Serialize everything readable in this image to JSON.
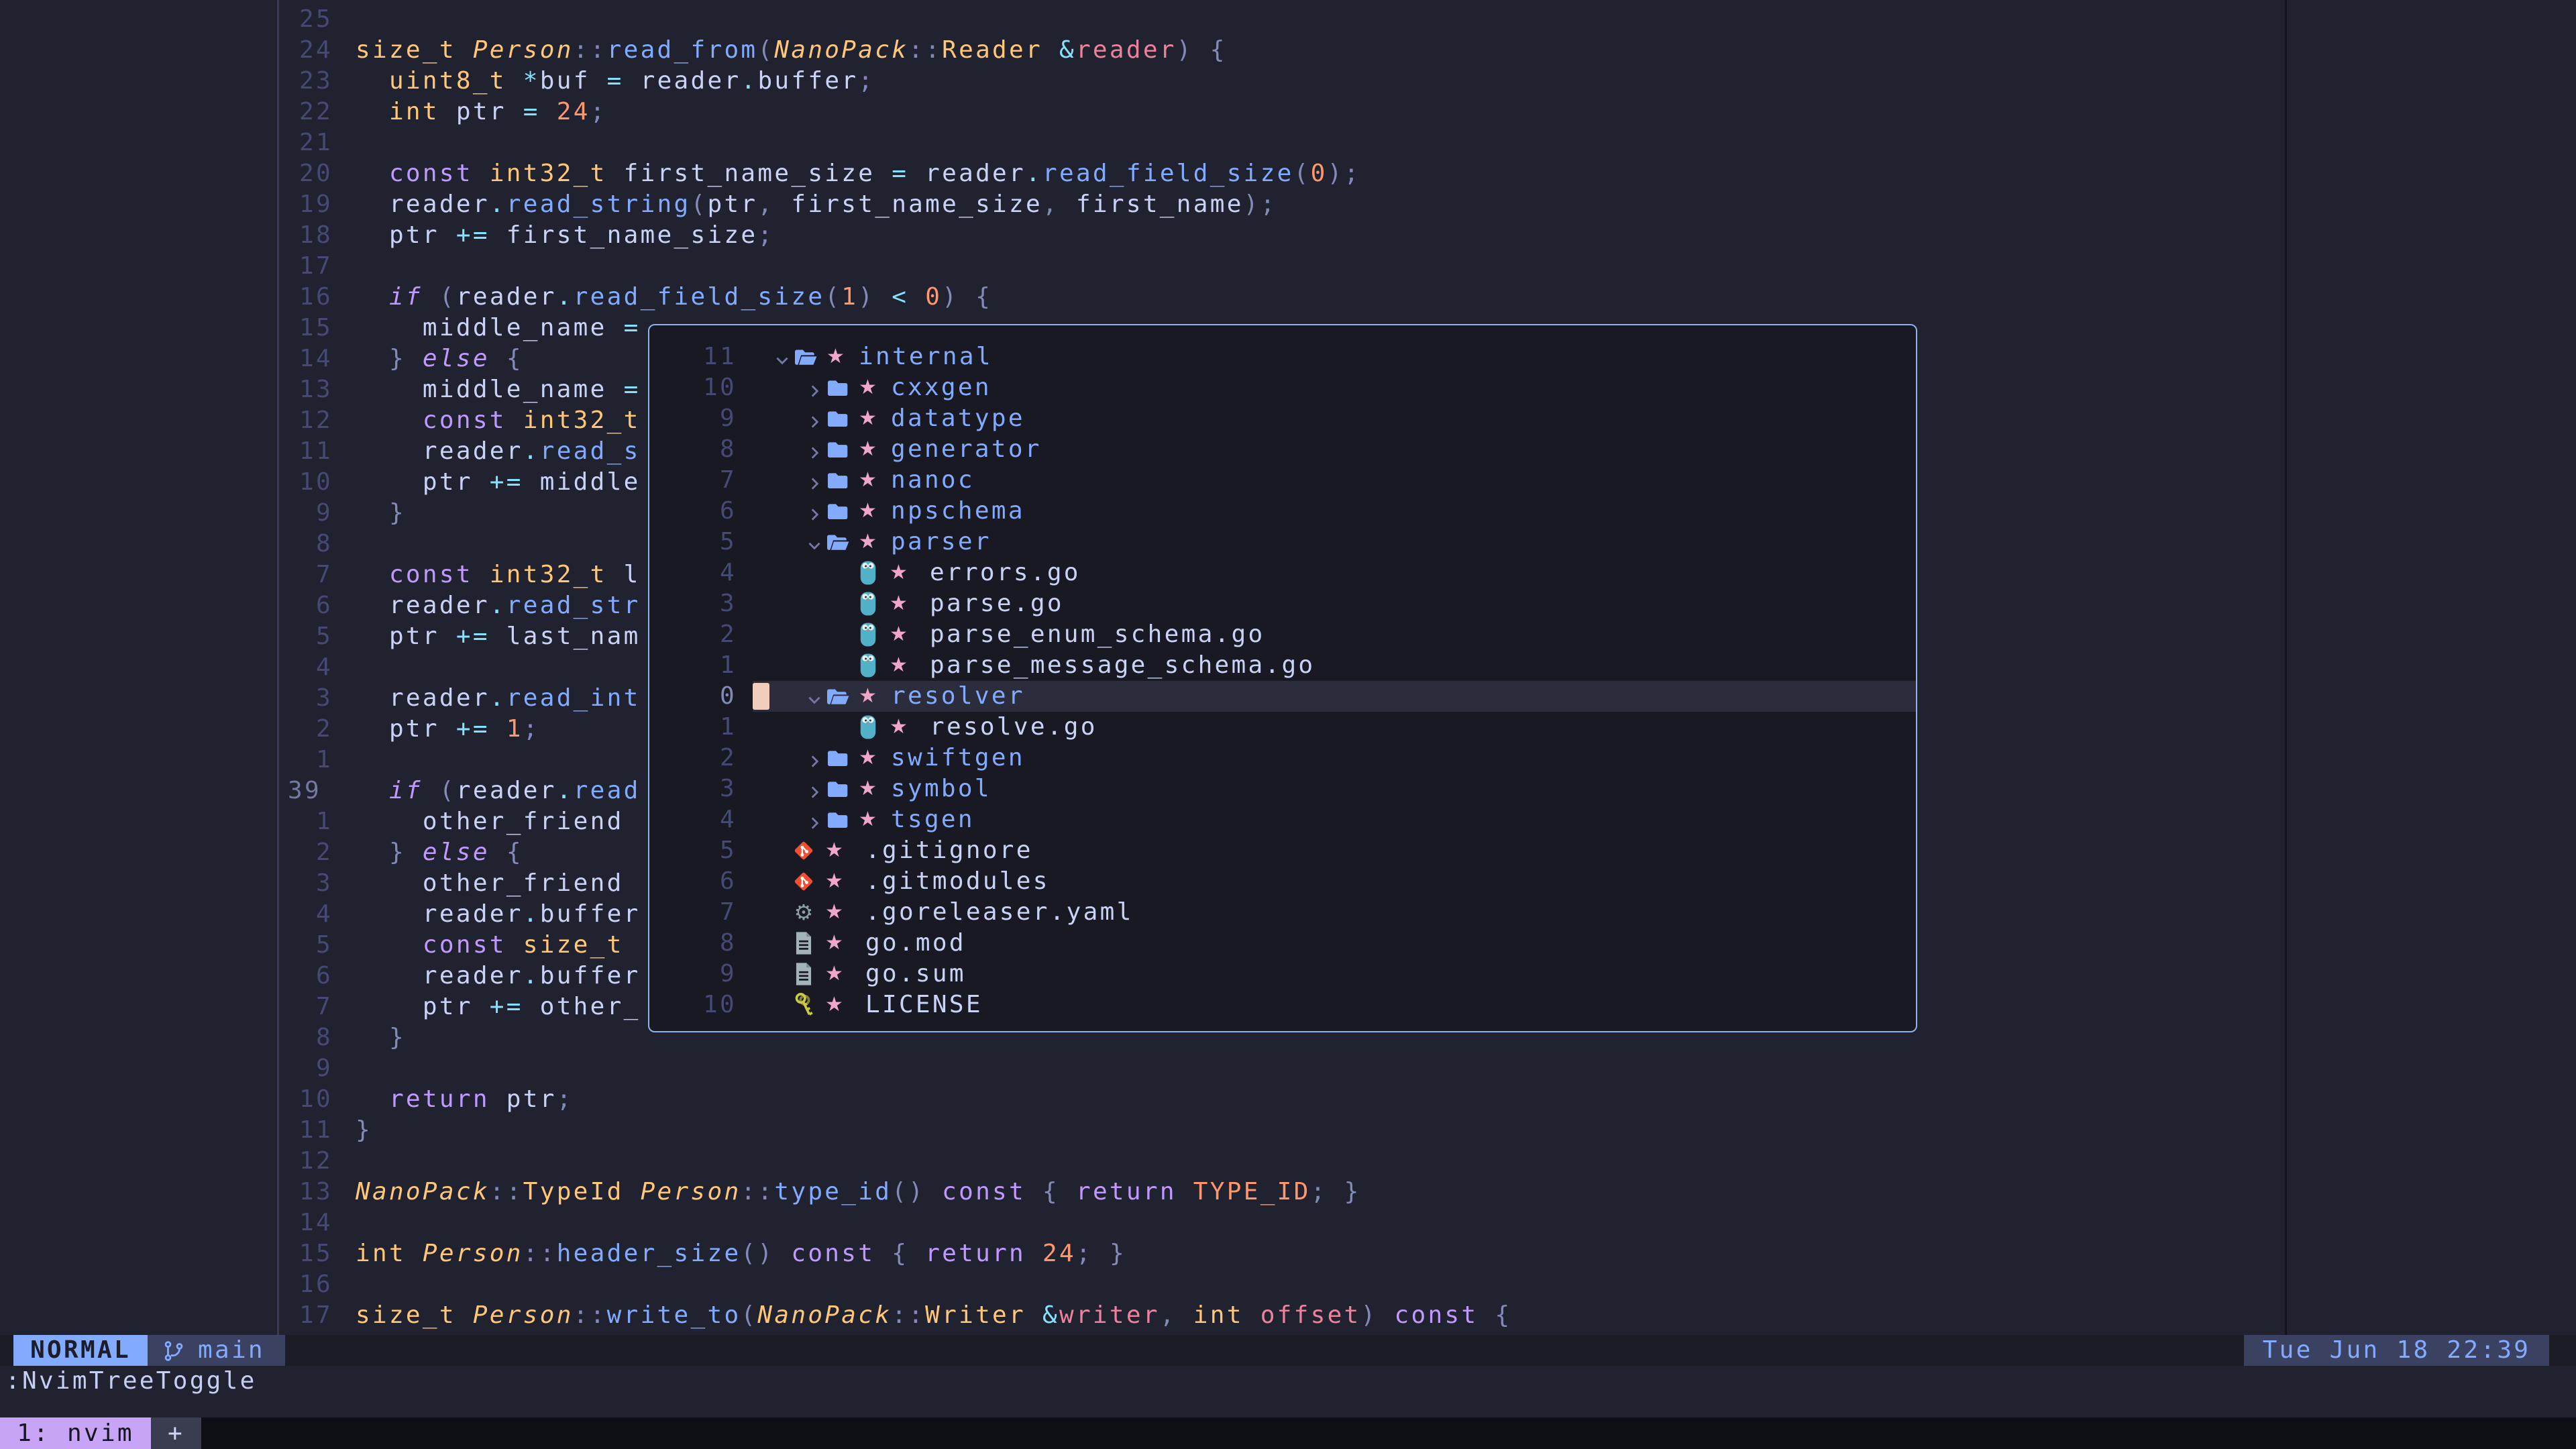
{
  "colors": {
    "editor_bg": "#212230",
    "float_bg": "#181923",
    "float_border": "#8fb2ea",
    "cursorline_bg": "#2b2d3c",
    "cursor_block": "#f2cdbc",
    "statusline_bg": "#1b1c26",
    "segment_bg": "#3b4261",
    "accent_blue": "#82aaff",
    "keyword": "#c099ff",
    "type": "#ffc777",
    "function": "#82aaff",
    "number": "#ff966c",
    "operator": "#86e1fc",
    "punct": "#828bb8",
    "param": "#ec829c",
    "variable": "#c8d3f5",
    "tree_star": "#f0a6c6",
    "go_icon": "#52b0c8",
    "git_icon": "#f14e32",
    "gear_icon": "#8aa0a6",
    "doc_icon": "#a3b4b6",
    "key_icon": "#cbcb41",
    "tmux_chip": "#c7a4f5",
    "tmux_bar": "#0e0f15"
  },
  "statusline": {
    "mode": "NORMAL",
    "branch": "main",
    "clock": "Tue Jun 18 22:39"
  },
  "cmdline": {
    "text": ":NvimTreeToggle"
  },
  "tmux": {
    "window_label": "1: nvim",
    "overflow_label": "+"
  },
  "editor": {
    "lines": [
      {
        "n": "25",
        "t": []
      },
      {
        "n": "24",
        "t": [
          [
            "t",
            "size_t"
          ],
          [
            "v",
            " "
          ],
          [
            "ti",
            "Person"
          ],
          [
            "d",
            "::"
          ],
          [
            "f",
            "read_from"
          ],
          [
            "d",
            "("
          ],
          [
            "ti",
            "NanoPack"
          ],
          [
            "d",
            "::"
          ],
          [
            "t",
            "Reader"
          ],
          [
            "v",
            " "
          ],
          [
            "o",
            "&"
          ],
          [
            "p",
            "reader"
          ],
          [
            "d",
            ") {"
          ]
        ]
      },
      {
        "n": "23",
        "t": [
          [
            "v",
            "  "
          ],
          [
            "t",
            "uint8_t"
          ],
          [
            "v",
            " "
          ],
          [
            "o",
            "*"
          ],
          [
            "v",
            "buf "
          ],
          [
            "o",
            "="
          ],
          [
            "v",
            " reader"
          ],
          [
            "o",
            "."
          ],
          [
            "v",
            "buffer"
          ],
          [
            "d",
            ";"
          ]
        ]
      },
      {
        "n": "22",
        "t": [
          [
            "v",
            "  "
          ],
          [
            "t",
            "int"
          ],
          [
            "v",
            " ptr "
          ],
          [
            "o",
            "="
          ],
          [
            "v",
            " "
          ],
          [
            "n",
            "24"
          ],
          [
            "d",
            ";"
          ]
        ]
      },
      {
        "n": "21",
        "t": []
      },
      {
        "n": "20",
        "t": [
          [
            "v",
            "  "
          ],
          [
            "k",
            "const"
          ],
          [
            "v",
            " "
          ],
          [
            "t",
            "int32_t"
          ],
          [
            "v",
            " first_name_size "
          ],
          [
            "o",
            "="
          ],
          [
            "v",
            " reader"
          ],
          [
            "o",
            "."
          ],
          [
            "f",
            "read_field_size"
          ],
          [
            "d",
            "("
          ],
          [
            "n",
            "0"
          ],
          [
            "d",
            ");"
          ]
        ]
      },
      {
        "n": "19",
        "t": [
          [
            "v",
            "  reader"
          ],
          [
            "o",
            "."
          ],
          [
            "f",
            "read_string"
          ],
          [
            "d",
            "("
          ],
          [
            "v",
            "ptr"
          ],
          [
            "d",
            ","
          ],
          [
            "v",
            " first_name_size"
          ],
          [
            "d",
            ","
          ],
          [
            "v",
            " first_name"
          ],
          [
            "d",
            ");"
          ]
        ]
      },
      {
        "n": "18",
        "t": [
          [
            "v",
            "  ptr "
          ],
          [
            "o",
            "+="
          ],
          [
            "v",
            " first_name_size"
          ],
          [
            "d",
            ";"
          ]
        ]
      },
      {
        "n": "17",
        "t": []
      },
      {
        "n": "16",
        "t": [
          [
            "v",
            "  "
          ],
          [
            "ki",
            "if"
          ],
          [
            "v",
            " "
          ],
          [
            "d",
            "("
          ],
          [
            "v",
            "reader"
          ],
          [
            "o",
            "."
          ],
          [
            "f",
            "read_field_size"
          ],
          [
            "d",
            "("
          ],
          [
            "n",
            "1"
          ],
          [
            "d",
            ")"
          ],
          [
            "v",
            " "
          ],
          [
            "o",
            "<"
          ],
          [
            "v",
            " "
          ],
          [
            "n",
            "0"
          ],
          [
            "d",
            ")"
          ],
          [
            "v",
            " "
          ],
          [
            "d",
            "{"
          ]
        ]
      },
      {
        "n": "15",
        "t": [
          [
            "v",
            "    middle_name "
          ],
          [
            "o",
            "="
          ],
          [
            "v",
            " "
          ]
        ]
      },
      {
        "n": "14",
        "t": [
          [
            "v",
            "  "
          ],
          [
            "d",
            "}"
          ],
          [
            "v",
            " "
          ],
          [
            "ki",
            "else"
          ],
          [
            "v",
            " "
          ],
          [
            "d",
            "{"
          ]
        ]
      },
      {
        "n": "13",
        "t": [
          [
            "v",
            "    middle_name "
          ],
          [
            "o",
            "="
          ],
          [
            "v",
            " "
          ]
        ]
      },
      {
        "n": "12",
        "t": [
          [
            "v",
            "    "
          ],
          [
            "k",
            "const"
          ],
          [
            "v",
            " "
          ],
          [
            "t",
            "int32_t"
          ]
        ]
      },
      {
        "n": "11",
        "t": [
          [
            "v",
            "    reader"
          ],
          [
            "o",
            "."
          ],
          [
            "f",
            "read_s"
          ]
        ]
      },
      {
        "n": "10",
        "t": [
          [
            "v",
            "    ptr "
          ],
          [
            "o",
            "+="
          ],
          [
            "v",
            " middle"
          ]
        ]
      },
      {
        "n": "9",
        "t": [
          [
            "v",
            "  "
          ],
          [
            "d",
            "}"
          ]
        ]
      },
      {
        "n": "8",
        "t": []
      },
      {
        "n": "7",
        "t": [
          [
            "v",
            "  "
          ],
          [
            "k",
            "const"
          ],
          [
            "v",
            " "
          ],
          [
            "t",
            "int32_t"
          ],
          [
            "v",
            " l"
          ]
        ]
      },
      {
        "n": "6",
        "t": [
          [
            "v",
            "  reader"
          ],
          [
            "o",
            "."
          ],
          [
            "f",
            "read_str"
          ]
        ]
      },
      {
        "n": "5",
        "t": [
          [
            "v",
            "  ptr "
          ],
          [
            "o",
            "+="
          ],
          [
            "v",
            " last_nam"
          ]
        ]
      },
      {
        "n": "4",
        "t": []
      },
      {
        "n": "3",
        "t": [
          [
            "v",
            "  reader"
          ],
          [
            "o",
            "."
          ],
          [
            "f",
            "read_int"
          ]
        ]
      },
      {
        "n": "2",
        "t": [
          [
            "v",
            "  ptr "
          ],
          [
            "o",
            "+="
          ],
          [
            "v",
            " "
          ],
          [
            "n",
            "1"
          ],
          [
            "d",
            ";"
          ]
        ]
      },
      {
        "n": "1",
        "t": []
      },
      {
        "n": "39",
        "cur": true,
        "t": [
          [
            "v",
            "  "
          ],
          [
            "ki",
            "if"
          ],
          [
            "v",
            " "
          ],
          [
            "d",
            "("
          ],
          [
            "v",
            "reader"
          ],
          [
            "o",
            "."
          ],
          [
            "f",
            "read"
          ]
        ]
      },
      {
        "n": "1",
        "t": [
          [
            "v",
            "    other_friend"
          ]
        ]
      },
      {
        "n": "2",
        "t": [
          [
            "v",
            "  "
          ],
          [
            "d",
            "}"
          ],
          [
            "v",
            " "
          ],
          [
            "ki",
            "else"
          ],
          [
            "v",
            " "
          ],
          [
            "d",
            "{"
          ]
        ]
      },
      {
        "n": "3",
        "t": [
          [
            "v",
            "    other_friend"
          ]
        ]
      },
      {
        "n": "4",
        "t": [
          [
            "v",
            "    reader"
          ],
          [
            "o",
            "."
          ],
          [
            "v",
            "buffer"
          ]
        ]
      },
      {
        "n": "5",
        "t": [
          [
            "v",
            "    "
          ],
          [
            "k",
            "const"
          ],
          [
            "v",
            " "
          ],
          [
            "t",
            "size_t"
          ]
        ]
      },
      {
        "n": "6",
        "t": [
          [
            "v",
            "    reader"
          ],
          [
            "o",
            "."
          ],
          [
            "v",
            "buffer"
          ]
        ]
      },
      {
        "n": "7",
        "t": [
          [
            "v",
            "    ptr "
          ],
          [
            "o",
            "+="
          ],
          [
            "v",
            " other_"
          ]
        ]
      },
      {
        "n": "8",
        "t": [
          [
            "v",
            "  "
          ],
          [
            "d",
            "}"
          ]
        ]
      },
      {
        "n": "9",
        "t": []
      },
      {
        "n": "10",
        "t": [
          [
            "v",
            "  "
          ],
          [
            "k",
            "return"
          ],
          [
            "v",
            " ptr"
          ],
          [
            "d",
            ";"
          ]
        ]
      },
      {
        "n": "11",
        "t": [
          [
            "d",
            "}"
          ]
        ]
      },
      {
        "n": "12",
        "t": []
      },
      {
        "n": "13",
        "t": [
          [
            "ti",
            "NanoPack"
          ],
          [
            "d",
            "::"
          ],
          [
            "t",
            "TypeId"
          ],
          [
            "v",
            " "
          ],
          [
            "ti",
            "Person"
          ],
          [
            "d",
            "::"
          ],
          [
            "f",
            "type_id"
          ],
          [
            "d",
            "()"
          ],
          [
            "v",
            " "
          ],
          [
            "k",
            "const"
          ],
          [
            "v",
            " "
          ],
          [
            "d",
            "{"
          ],
          [
            "v",
            " "
          ],
          [
            "k",
            "return"
          ],
          [
            "v",
            " "
          ],
          [
            "n",
            "TYPE_ID"
          ],
          [
            "d",
            ";"
          ],
          [
            "v",
            " "
          ],
          [
            "d",
            "}"
          ]
        ]
      },
      {
        "n": "14",
        "t": []
      },
      {
        "n": "15",
        "t": [
          [
            "t",
            "int"
          ],
          [
            "v",
            " "
          ],
          [
            "ti",
            "Person"
          ],
          [
            "d",
            "::"
          ],
          [
            "f",
            "header_size"
          ],
          [
            "d",
            "()"
          ],
          [
            "v",
            " "
          ],
          [
            "k",
            "const"
          ],
          [
            "v",
            " "
          ],
          [
            "d",
            "{"
          ],
          [
            "v",
            " "
          ],
          [
            "k",
            "return"
          ],
          [
            "v",
            " "
          ],
          [
            "n",
            "24"
          ],
          [
            "d",
            ";"
          ],
          [
            "v",
            " "
          ],
          [
            "d",
            "}"
          ]
        ]
      },
      {
        "n": "16",
        "t": []
      },
      {
        "n": "17",
        "t": [
          [
            "t",
            "size_t"
          ],
          [
            "v",
            " "
          ],
          [
            "ti",
            "Person"
          ],
          [
            "d",
            "::"
          ],
          [
            "f",
            "write_to"
          ],
          [
            "d",
            "("
          ],
          [
            "ti",
            "NanoPack"
          ],
          [
            "d",
            "::"
          ],
          [
            "t",
            "Writer"
          ],
          [
            "v",
            " "
          ],
          [
            "o",
            "&"
          ],
          [
            "p",
            "writer"
          ],
          [
            "d",
            ","
          ],
          [
            "v",
            " "
          ],
          [
            "t",
            "int"
          ],
          [
            "v",
            " "
          ],
          [
            "p",
            "offset"
          ],
          [
            "d",
            ")"
          ],
          [
            "v",
            " "
          ],
          [
            "k",
            "const"
          ],
          [
            "v",
            " "
          ],
          [
            "d",
            "{"
          ]
        ]
      }
    ]
  },
  "tree": {
    "rows": [
      {
        "n": "11",
        "depth": 0,
        "kind": "folder-open",
        "name": "internal"
      },
      {
        "n": "10",
        "depth": 1,
        "kind": "folder-closed",
        "name": "cxxgen"
      },
      {
        "n": "9",
        "depth": 1,
        "kind": "folder-closed",
        "name": "datatype"
      },
      {
        "n": "8",
        "depth": 1,
        "kind": "folder-closed",
        "name": "generator"
      },
      {
        "n": "7",
        "depth": 1,
        "kind": "folder-closed",
        "name": "nanoc"
      },
      {
        "n": "6",
        "depth": 1,
        "kind": "folder-closed",
        "name": "npschema"
      },
      {
        "n": "5",
        "depth": 1,
        "kind": "folder-open",
        "name": "parser"
      },
      {
        "n": "4",
        "depth": 2,
        "kind": "file",
        "icon": "go",
        "name": "errors.go"
      },
      {
        "n": "3",
        "depth": 2,
        "kind": "file",
        "icon": "go",
        "name": "parse.go"
      },
      {
        "n": "2",
        "depth": 2,
        "kind": "file",
        "icon": "go",
        "name": "parse_enum_schema.go"
      },
      {
        "n": "1",
        "depth": 2,
        "kind": "file",
        "icon": "go",
        "name": "parse_message_schema.go"
      },
      {
        "n": "0",
        "depth": 1,
        "kind": "folder-open",
        "name": "resolver",
        "current": true
      },
      {
        "n": "1",
        "depth": 2,
        "kind": "file",
        "icon": "go",
        "name": "resolve.go"
      },
      {
        "n": "2",
        "depth": 1,
        "kind": "folder-closed",
        "name": "swiftgen"
      },
      {
        "n": "3",
        "depth": 1,
        "kind": "folder-closed",
        "name": "symbol"
      },
      {
        "n": "4",
        "depth": 1,
        "kind": "folder-closed",
        "name": "tsgen"
      },
      {
        "n": "5",
        "depth": 0,
        "kind": "file",
        "icon": "git",
        "name": ".gitignore"
      },
      {
        "n": "6",
        "depth": 0,
        "kind": "file",
        "icon": "git",
        "name": ".gitmodules"
      },
      {
        "n": "7",
        "depth": 0,
        "kind": "file",
        "icon": "gear",
        "name": ".goreleaser.yaml"
      },
      {
        "n": "8",
        "depth": 0,
        "kind": "file",
        "icon": "doc",
        "name": "go.mod"
      },
      {
        "n": "9",
        "depth": 0,
        "kind": "file",
        "icon": "doc",
        "name": "go.sum"
      },
      {
        "n": "10",
        "depth": 0,
        "kind": "file",
        "icon": "key",
        "name": "LICENSE"
      }
    ]
  }
}
